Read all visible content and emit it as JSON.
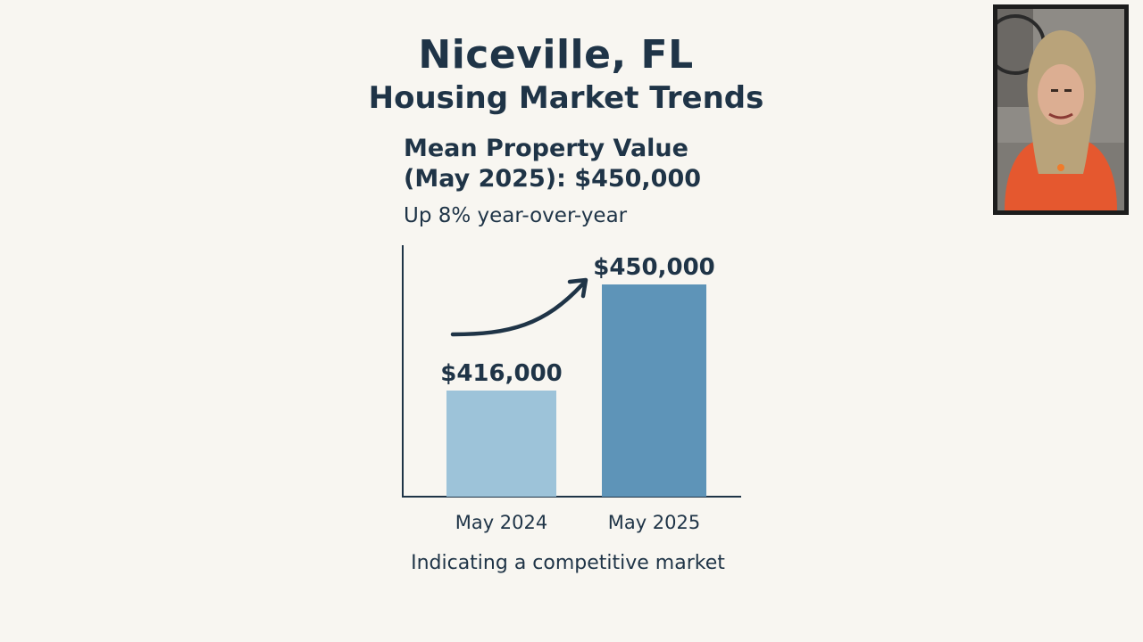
{
  "slide": {
    "title": "Niceville, FL",
    "subtitle": "Housing Market Trends",
    "stat_line1": "Mean Property Value",
    "stat_line2": "(May 2025): $450,000",
    "growth": "Up 8% year-over-year",
    "caption": "Indicating a competitive market"
  },
  "chart_data": {
    "type": "bar",
    "categories": [
      "May 2024",
      "May 2025"
    ],
    "values": [
      416000,
      450000
    ],
    "data_labels": [
      "$416,000",
      "$450,000"
    ],
    "colors": [
      "#9dc3d9",
      "#5e94b8"
    ],
    "annotation": "upward-trend-arrow"
  },
  "colors": {
    "background": "#f8f6f1",
    "text": "#1f3447",
    "axis": "#1f3447"
  },
  "presenter": {
    "icon": "presenter-webcam-video"
  }
}
